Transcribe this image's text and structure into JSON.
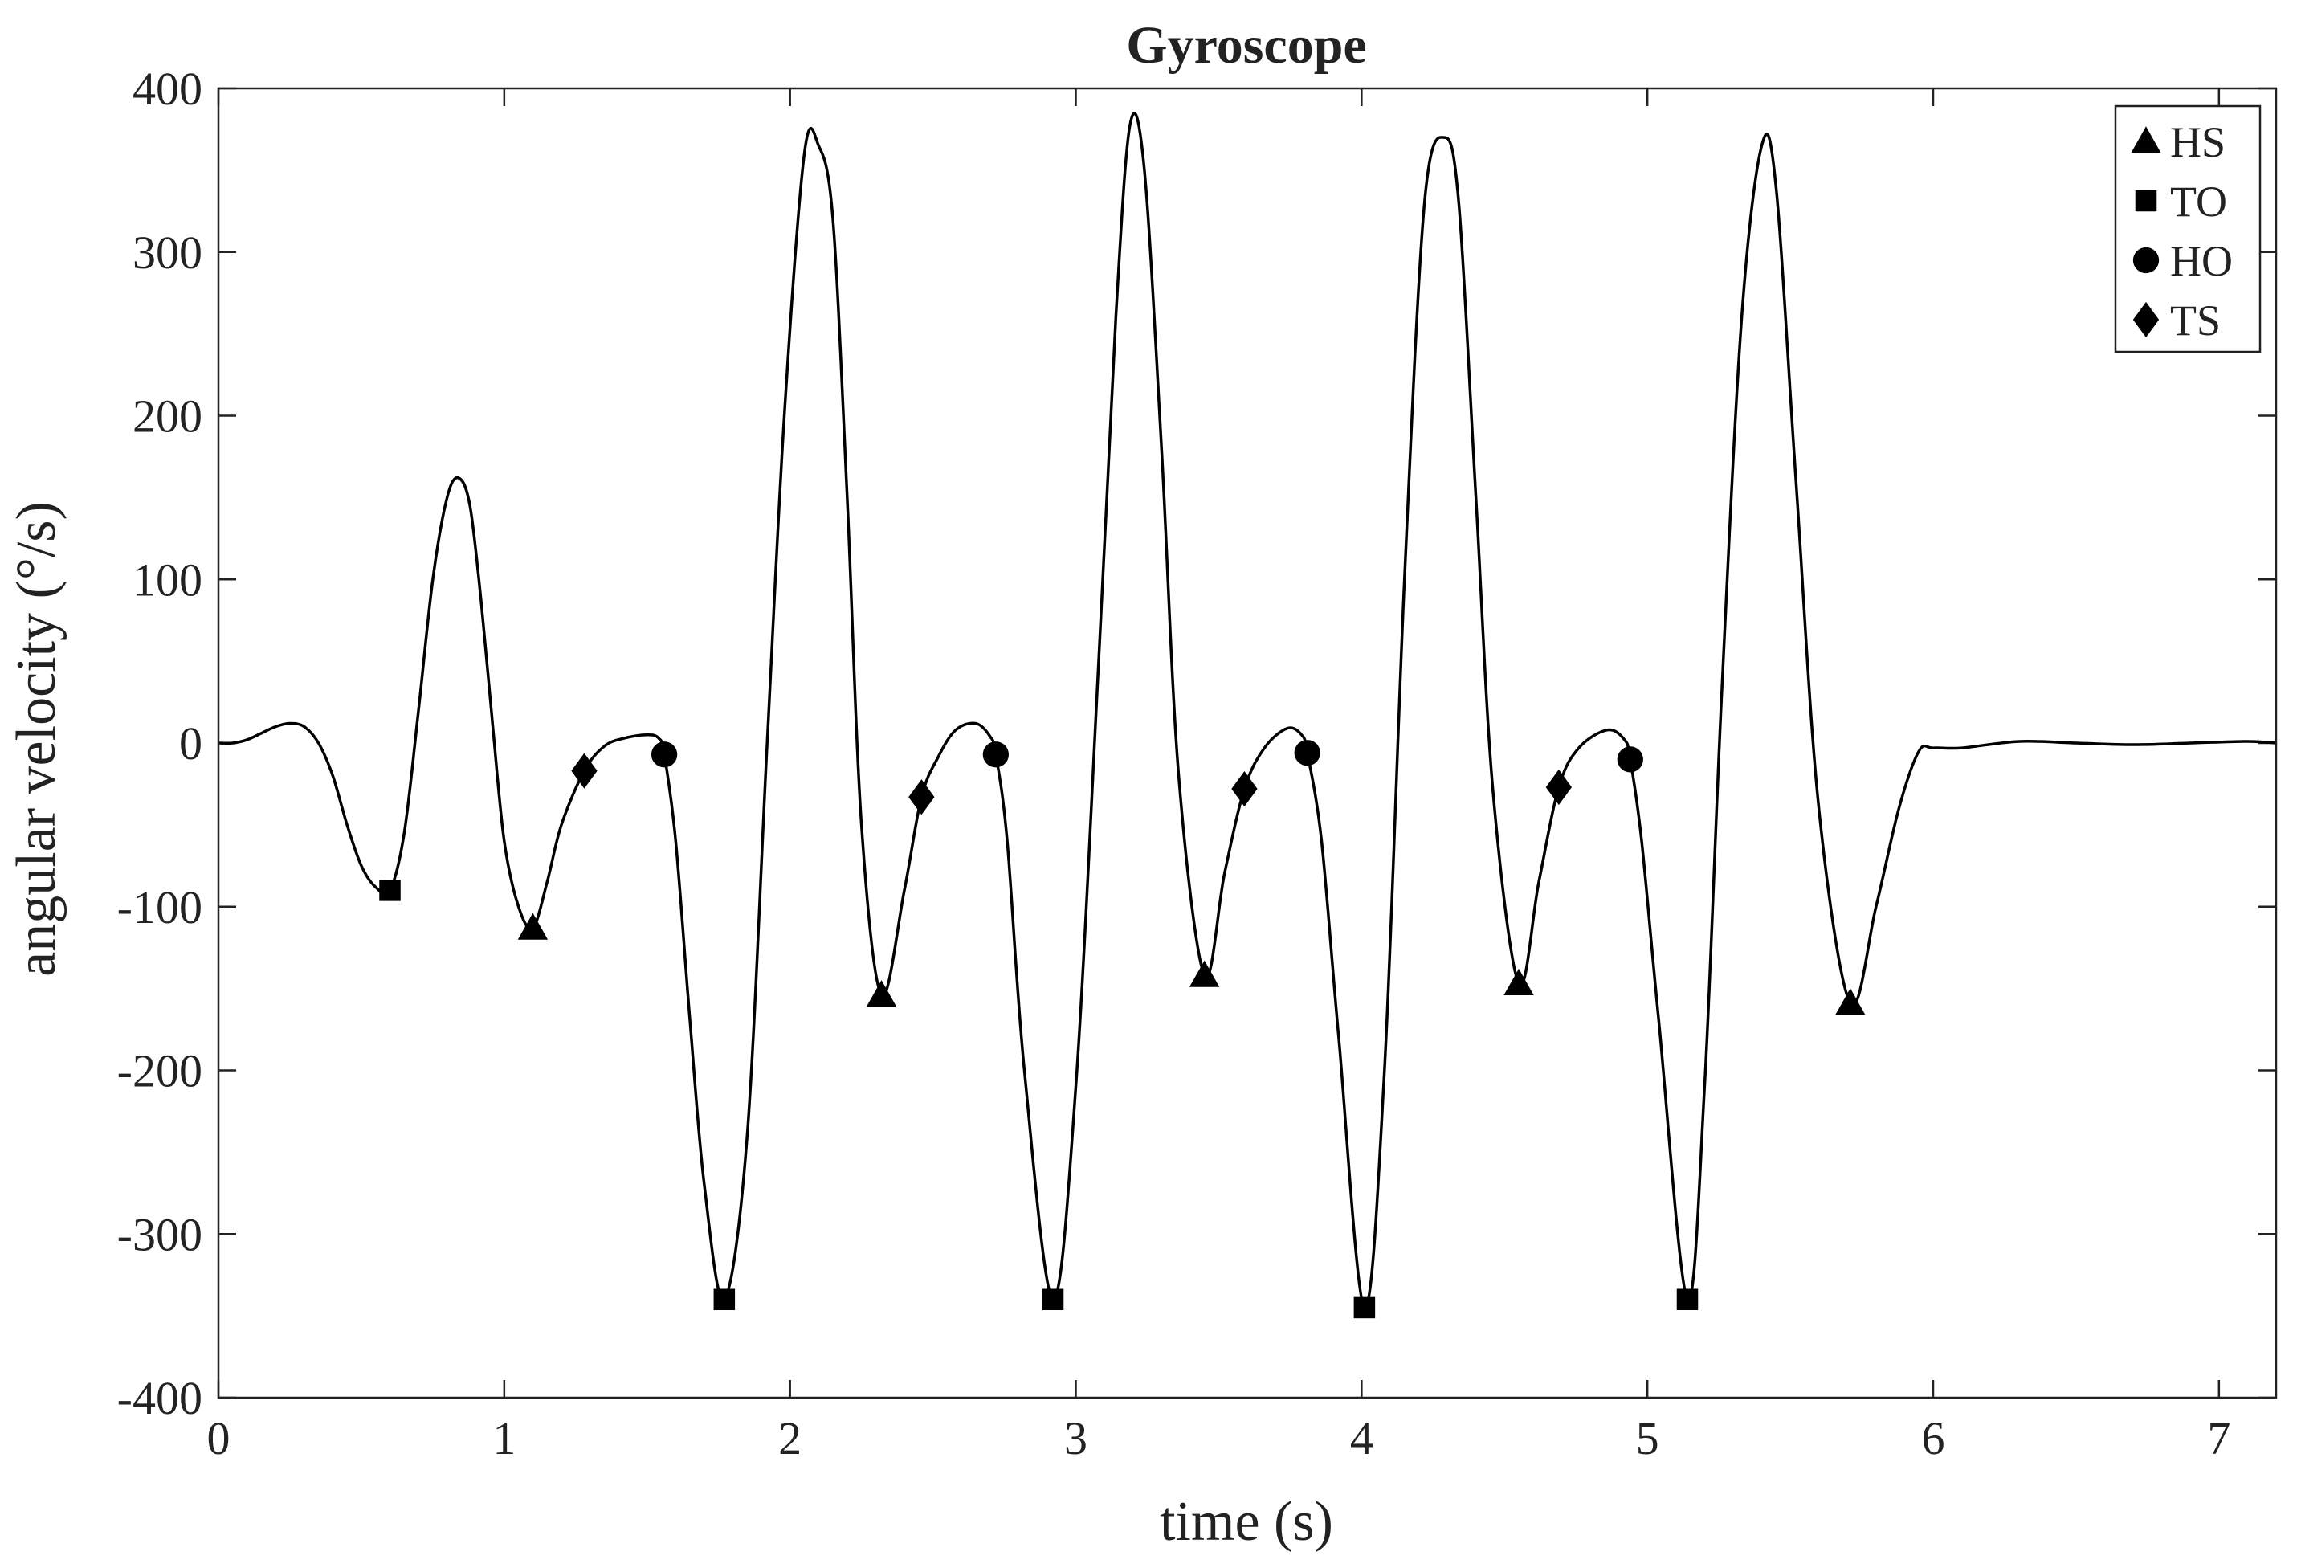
{
  "chart_data": {
    "type": "line",
    "title": "Gyroscope",
    "xlabel": "time (s)",
    "ylabel": "angular velocity (°/s)",
    "xlim": [
      0,
      7.2
    ],
    "ylim": [
      -400,
      400
    ],
    "xticks": [
      0,
      1,
      2,
      3,
      4,
      5,
      6,
      7
    ],
    "yticks": [
      -400,
      -300,
      -200,
      -100,
      0,
      100,
      200,
      300,
      400
    ],
    "grid": false,
    "legend_position": "top-right",
    "line_color": "#000000",
    "series": [
      {
        "kind": "line",
        "x": [
          0,
          0.05,
          0.1,
          0.15,
          0.2,
          0.25,
          0.3,
          0.35,
          0.4,
          0.45,
          0.5,
          0.55,
          0.6,
          0.65,
          0.7,
          0.75,
          0.8,
          0.84,
          0.88,
          0.92,
          0.96,
          1.0,
          1.05,
          1.1,
          1.15,
          1.2,
          1.28,
          1.35,
          1.42,
          1.5,
          1.54,
          1.56,
          1.6,
          1.65,
          1.7,
          1.77,
          1.85,
          1.92,
          1.98,
          2.05,
          2.1,
          2.15,
          2.2,
          2.25,
          2.32,
          2.4,
          2.46,
          2.52,
          2.58,
          2.65,
          2.7,
          2.72,
          2.76,
          2.82,
          2.92,
          3.0,
          3.08,
          3.14,
          3.19,
          3.24,
          3.3,
          3.36,
          3.45,
          3.52,
          3.59,
          3.66,
          3.74,
          3.79,
          3.81,
          3.86,
          3.92,
          4.01,
          4.08,
          4.15,
          4.22,
          4.29,
          4.34,
          4.4,
          4.46,
          4.55,
          4.62,
          4.69,
          4.76,
          4.86,
          4.92,
          4.94,
          4.98,
          5.04,
          5.14,
          5.2,
          5.26,
          5.33,
          5.4,
          5.45,
          5.52,
          5.6,
          5.71,
          5.8,
          5.88,
          5.95,
          6.0,
          6.1,
          6.3,
          6.5,
          6.7,
          6.9,
          7.1,
          7.2
        ],
        "y": [
          0,
          0,
          2,
          6,
          10,
          12,
          10,
          0,
          -20,
          -50,
          -75,
          -88,
          -90,
          -55,
          20,
          100,
          150,
          162,
          145,
          85,
          10,
          -60,
          -100,
          -113,
          -85,
          -50,
          -17,
          -2,
          3,
          5,
          3,
          -7,
          -60,
          -170,
          -270,
          -340,
          -240,
          0,
          200,
          360,
          365,
          320,
          150,
          -50,
          -154,
          -90,
          -33,
          -8,
          8,
          12,
          4,
          -7,
          -60,
          -200,
          -340,
          -210,
          50,
          260,
          378,
          350,
          180,
          -20,
          -142,
          -80,
          -28,
          -3,
          9,
          5,
          -6,
          -60,
          -180,
          -345,
          -200,
          100,
          330,
          370,
          330,
          150,
          -30,
          -147,
          -85,
          -27,
          -3,
          8,
          2,
          -10,
          -60,
          -170,
          -340,
          -210,
          30,
          260,
          365,
          340,
          160,
          -40,
          -159,
          -100,
          -40,
          -5,
          -3,
          -3,
          1,
          0,
          -1,
          0,
          1,
          0
        ]
      },
      {
        "name": "HS",
        "kind": "marker",
        "marker": "triangle",
        "x": [
          1.1,
          2.32,
          3.45,
          4.55,
          5.71
        ],
        "y": [
          -113,
          -154,
          -142,
          -147,
          -159
        ]
      },
      {
        "name": "TO",
        "kind": "marker",
        "marker": "square",
        "x": [
          0.6,
          1.77,
          2.92,
          4.01,
          5.14
        ],
        "y": [
          -90,
          -340,
          -340,
          -345,
          -340
        ]
      },
      {
        "name": "HO",
        "kind": "marker",
        "marker": "circle",
        "x": [
          1.56,
          2.72,
          3.81,
          4.94
        ],
        "y": [
          -7,
          -7,
          -6,
          -10
        ]
      },
      {
        "name": "TS",
        "kind": "marker",
        "marker": "diamond",
        "x": [
          1.28,
          2.46,
          3.59,
          4.69
        ],
        "y": [
          -17,
          -33,
          -28,
          -27
        ]
      }
    ]
  }
}
